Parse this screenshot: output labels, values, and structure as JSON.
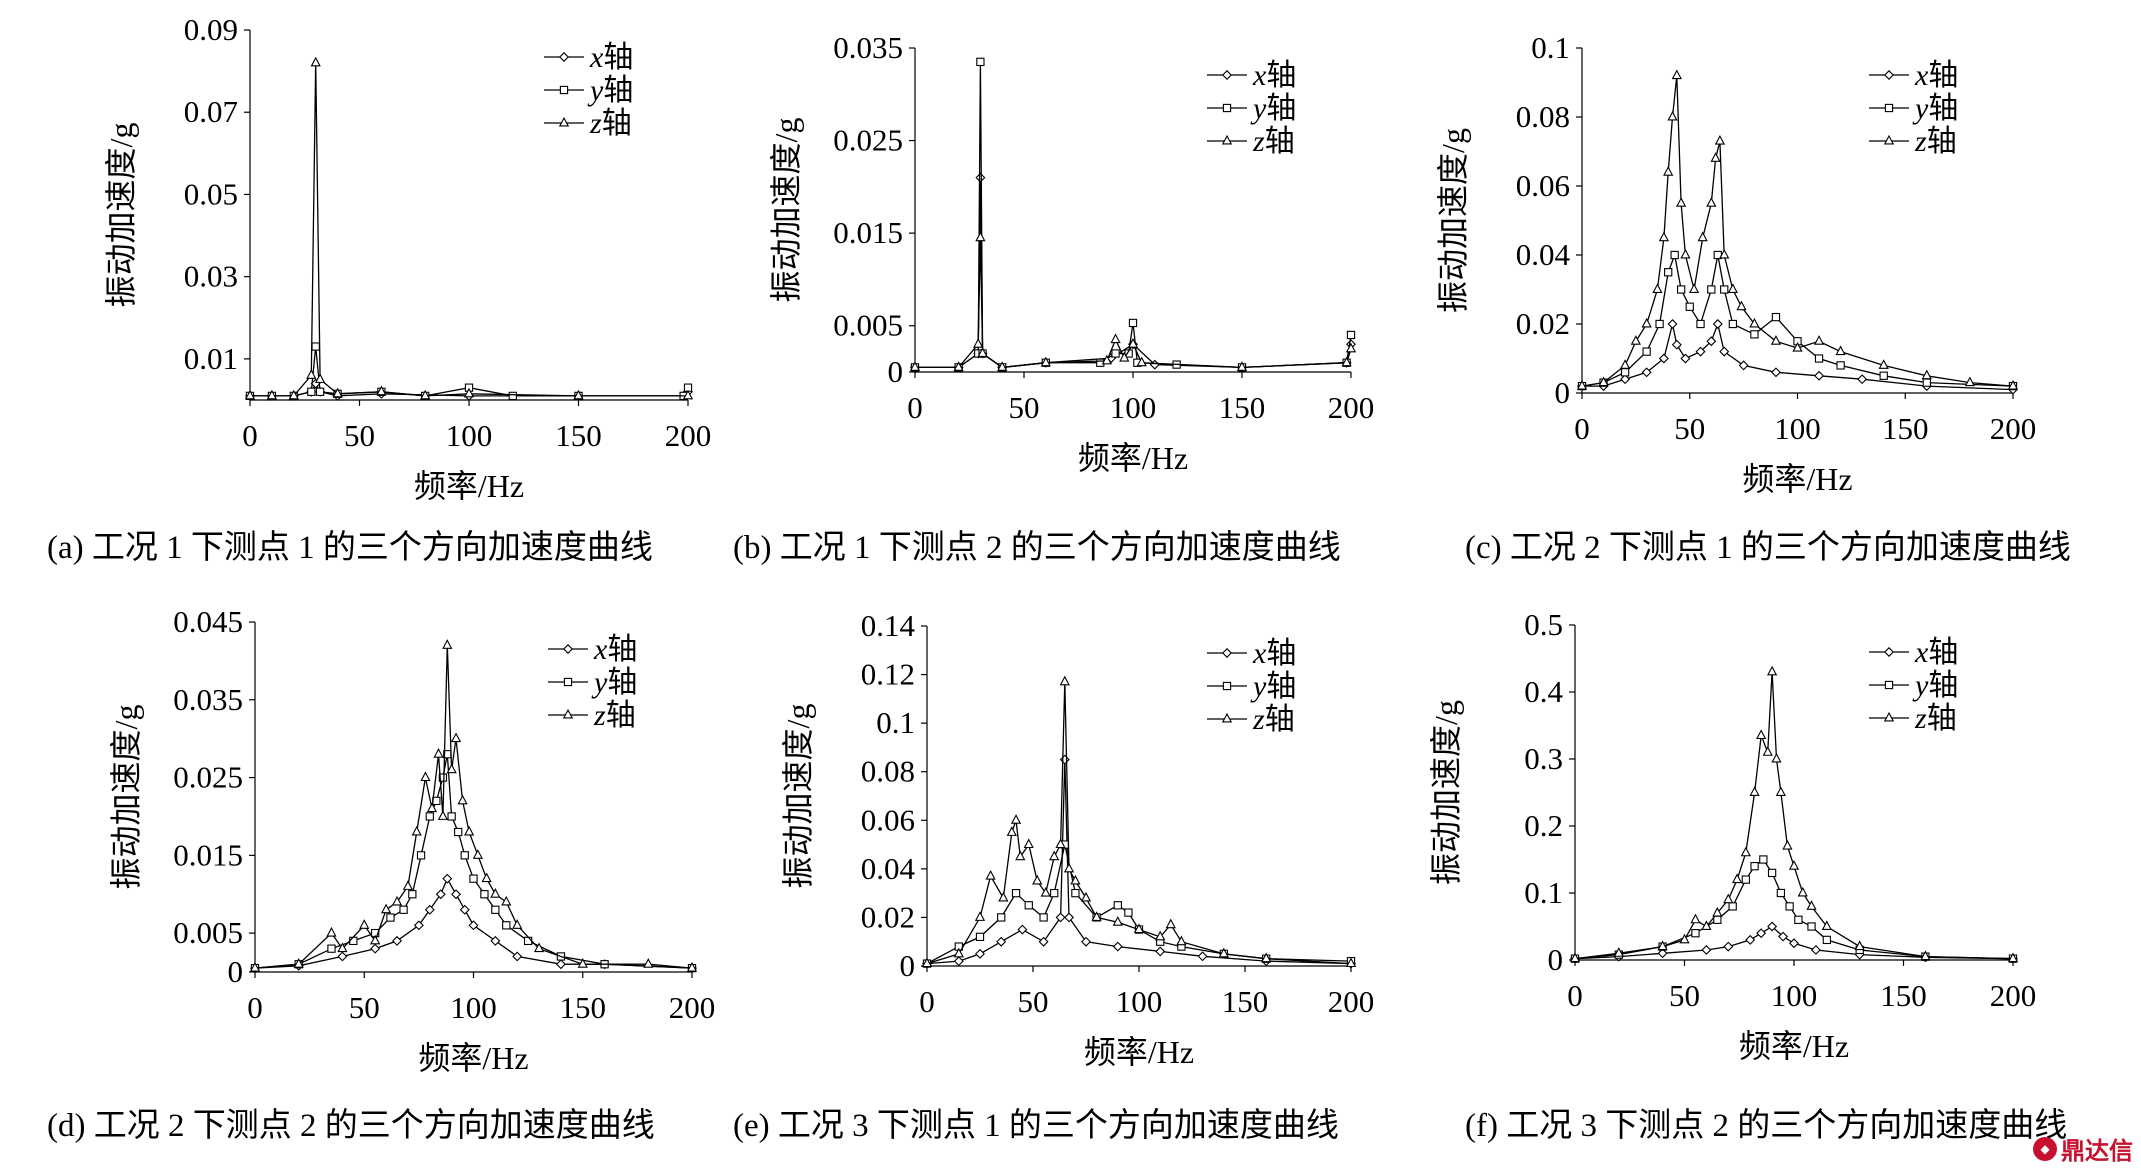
{
  "watermark": {
    "text": "鼎达信",
    "color": "#c8102e"
  },
  "style": {
    "line_color": "#000000",
    "marker_fill": "#ffffff"
  },
  "chart_data": [
    {
      "id": "a",
      "type": "line",
      "caption": "(a) 工况 1 下测点 1 的三个方向加速度曲线",
      "xlabel": "频率/Hz",
      "ylabel": "振动加速度/g",
      "xlim": [
        0,
        200
      ],
      "ylim": [
        0,
        0.09
      ],
      "xticks": [
        0,
        50,
        100,
        150,
        200
      ],
      "yticks": [
        0.01,
        0.03,
        0.05,
        0.07,
        0.09
      ],
      "ytick_labels": [
        "0.01",
        "0.03",
        "0.05",
        "0.07",
        "0.09"
      ],
      "legend_position": "top-right",
      "series": [
        {
          "name": "x轴",
          "prefix": "x",
          "suffix": "轴",
          "marker": "diamond",
          "x": [
            0,
            10,
            20,
            28,
            30,
            32,
            40,
            60,
            100,
            150,
            198,
            200
          ],
          "y": [
            0.001,
            0.001,
            0.001,
            0.002,
            0.004,
            0.002,
            0.001,
            0.0015,
            0.001,
            0.001,
            0.001,
            0.002
          ]
        },
        {
          "name": "y轴",
          "prefix": "y",
          "suffix": "轴",
          "marker": "square",
          "x": [
            0,
            10,
            20,
            28,
            30,
            32,
            40,
            60,
            80,
            100,
            120,
            150,
            198,
            200
          ],
          "y": [
            0.001,
            0.001,
            0.001,
            0.002,
            0.013,
            0.002,
            0.0015,
            0.002,
            0.001,
            0.003,
            0.001,
            0.001,
            0.001,
            0.003
          ]
        },
        {
          "name": "z轴",
          "prefix": "z",
          "suffix": "轴",
          "marker": "triangle",
          "x": [
            0,
            10,
            20,
            28,
            30,
            32,
            40,
            60,
            80,
            100,
            150,
            200
          ],
          "y": [
            0.001,
            0.001,
            0.001,
            0.006,
            0.082,
            0.005,
            0.0015,
            0.002,
            0.001,
            0.0015,
            0.001,
            0.001
          ]
        }
      ]
    },
    {
      "id": "b",
      "type": "line",
      "caption": "(b) 工况 1 下测点 2 的三个方向加速度曲线",
      "xlabel": "频率/Hz",
      "ylabel": "振动加速度/g",
      "xlim": [
        0,
        200
      ],
      "ylim": [
        0,
        0.035
      ],
      "xticks": [
        0,
        50,
        100,
        150,
        200
      ],
      "yticks": [
        0,
        0.005,
        0.015,
        0.025,
        0.035
      ],
      "ytick_labels": [
        "0",
        "0.005",
        "0.015",
        "0.025",
        "0.035"
      ],
      "legend_position": "top-right",
      "series": [
        {
          "name": "x轴",
          "prefix": "x",
          "suffix": "轴",
          "marker": "diamond",
          "x": [
            0,
            20,
            29,
            30,
            31,
            40,
            60,
            90,
            100,
            110,
            150,
            198,
            200
          ],
          "y": [
            0.0005,
            0.0005,
            0.002,
            0.021,
            0.002,
            0.0005,
            0.001,
            0.0015,
            0.003,
            0.0008,
            0.0005,
            0.001,
            0.003
          ]
        },
        {
          "name": "y轴",
          "prefix": "y",
          "suffix": "轴",
          "marker": "square",
          "x": [
            0,
            20,
            29,
            30,
            31,
            40,
            60,
            85,
            92,
            98,
            100,
            102,
            120,
            150,
            198,
            200
          ],
          "y": [
            0.0005,
            0.0005,
            0.002,
            0.0335,
            0.002,
            0.0005,
            0.001,
            0.001,
            0.002,
            0.002,
            0.0053,
            0.001,
            0.0008,
            0.0005,
            0.001,
            0.004
          ]
        },
        {
          "name": "z轴",
          "prefix": "z",
          "suffix": "轴",
          "marker": "triangle",
          "x": [
            0,
            20,
            29,
            30,
            31,
            40,
            60,
            88,
            92,
            96,
            100,
            104,
            150,
            198,
            200
          ],
          "y": [
            0.0005,
            0.0005,
            0.003,
            0.0145,
            0.002,
            0.0005,
            0.001,
            0.0012,
            0.0035,
            0.0015,
            0.003,
            0.001,
            0.0005,
            0.001,
            0.0025
          ]
        }
      ]
    },
    {
      "id": "c",
      "type": "line",
      "caption": "(c) 工况 2 下测点 1 的三个方向加速度曲线",
      "xlabel": "频率/Hz",
      "ylabel": "振动加速度/g",
      "xlim": [
        0,
        200
      ],
      "ylim": [
        0,
        0.1
      ],
      "xticks": [
        0,
        50,
        100,
        150,
        200
      ],
      "yticks": [
        0,
        0.02,
        0.04,
        0.06,
        0.08,
        0.1
      ],
      "ytick_labels": [
        "0",
        "0.02",
        "0.04",
        "0.06",
        "0.08",
        "0.1"
      ],
      "legend_position": "top-right",
      "series": [
        {
          "name": "x轴",
          "prefix": "x",
          "suffix": "轴",
          "marker": "diamond",
          "x": [
            0,
            10,
            20,
            30,
            38,
            42,
            44,
            48,
            55,
            60,
            63,
            66,
            75,
            90,
            110,
            130,
            160,
            200
          ],
          "y": [
            0.002,
            0.002,
            0.004,
            0.006,
            0.01,
            0.02,
            0.014,
            0.01,
            0.012,
            0.015,
            0.02,
            0.012,
            0.008,
            0.006,
            0.005,
            0.004,
            0.002,
            0.001
          ]
        },
        {
          "name": "y轴",
          "prefix": "y",
          "suffix": "轴",
          "marker": "square",
          "x": [
            0,
            10,
            20,
            30,
            36,
            40,
            43,
            46,
            50,
            55,
            60,
            63,
            66,
            70,
            80,
            90,
            100,
            110,
            120,
            140,
            160,
            200
          ],
          "y": [
            0.002,
            0.003,
            0.006,
            0.012,
            0.02,
            0.035,
            0.04,
            0.03,
            0.025,
            0.02,
            0.03,
            0.04,
            0.03,
            0.02,
            0.017,
            0.022,
            0.015,
            0.01,
            0.008,
            0.005,
            0.003,
            0.002
          ]
        },
        {
          "name": "z轴",
          "prefix": "z",
          "suffix": "轴",
          "marker": "triangle",
          "x": [
            0,
            10,
            20,
            25,
            30,
            35,
            38,
            40,
            42,
            44,
            46,
            48,
            52,
            56,
            60,
            62,
            64,
            66,
            70,
            74,
            80,
            90,
            100,
            110,
            120,
            140,
            160,
            180,
            200
          ],
          "y": [
            0.002,
            0.003,
            0.008,
            0.015,
            0.02,
            0.03,
            0.045,
            0.064,
            0.08,
            0.092,
            0.055,
            0.04,
            0.03,
            0.045,
            0.055,
            0.068,
            0.073,
            0.04,
            0.03,
            0.025,
            0.02,
            0.015,
            0.013,
            0.015,
            0.012,
            0.008,
            0.005,
            0.003,
            0.002
          ]
        }
      ]
    },
    {
      "id": "d",
      "type": "line",
      "caption": "(d) 工况 2 下测点 2 的三个方向加速度曲线",
      "xlabel": "频率/Hz",
      "ylabel": "振动加速度/g",
      "xlim": [
        0,
        200
      ],
      "ylim": [
        0,
        0.045
      ],
      "xticks": [
        0,
        50,
        100,
        150,
        200
      ],
      "yticks": [
        0,
        0.005,
        0.015,
        0.025,
        0.035,
        0.045
      ],
      "ytick_labels": [
        "0",
        "0.005",
        "0.015",
        "0.025",
        "0.035",
        "0.045"
      ],
      "legend_position": "top-right",
      "series": [
        {
          "name": "x轴",
          "prefix": "x",
          "suffix": "轴",
          "marker": "diamond",
          "x": [
            0,
            20,
            40,
            55,
            65,
            75,
            80,
            85,
            88,
            92,
            96,
            100,
            110,
            120,
            140,
            160,
            200
          ],
          "y": [
            0.0005,
            0.0008,
            0.002,
            0.003,
            0.004,
            0.006,
            0.008,
            0.01,
            0.012,
            0.01,
            0.008,
            0.006,
            0.004,
            0.002,
            0.001,
            0.001,
            0.0005
          ]
        },
        {
          "name": "y轴",
          "prefix": "y",
          "suffix": "轴",
          "marker": "square",
          "x": [
            0,
            20,
            35,
            45,
            55,
            62,
            68,
            72,
            76,
            80,
            83,
            86,
            88,
            90,
            93,
            96,
            100,
            105,
            110,
            115,
            125,
            140,
            160,
            200
          ],
          "y": [
            0.0005,
            0.001,
            0.003,
            0.004,
            0.005,
            0.007,
            0.008,
            0.01,
            0.015,
            0.02,
            0.022,
            0.025,
            0.028,
            0.02,
            0.018,
            0.015,
            0.012,
            0.01,
            0.008,
            0.006,
            0.004,
            0.002,
            0.001,
            0.0005
          ]
        },
        {
          "name": "z轴",
          "prefix": "z",
          "suffix": "轴",
          "marker": "triangle",
          "x": [
            0,
            20,
            35,
            40,
            50,
            55,
            60,
            65,
            70,
            74,
            78,
            81,
            84,
            86,
            88,
            90,
            92,
            95,
            98,
            102,
            106,
            110,
            115,
            120,
            130,
            150,
            180,
            200
          ],
          "y": [
            0.0005,
            0.001,
            0.005,
            0.003,
            0.006,
            0.004,
            0.008,
            0.009,
            0.011,
            0.018,
            0.025,
            0.021,
            0.028,
            0.02,
            0.042,
            0.026,
            0.03,
            0.022,
            0.018,
            0.015,
            0.012,
            0.01,
            0.009,
            0.006,
            0.003,
            0.001,
            0.001,
            0.0005
          ]
        }
      ]
    },
    {
      "id": "e",
      "type": "line",
      "caption": "(e) 工况 3 下测点 1 的三个方向加速度曲线",
      "xlabel": "频率/Hz",
      "ylabel": "振动加速度/g",
      "xlim": [
        0,
        200
      ],
      "ylim": [
        0,
        0.14
      ],
      "xticks": [
        0,
        50,
        100,
        150,
        200
      ],
      "yticks": [
        0,
        0.02,
        0.04,
        0.06,
        0.08,
        0.1,
        0.12,
        0.14
      ],
      "ytick_labels": [
        "0",
        "0.02",
        "0.04",
        "0.06",
        "0.08",
        "0.1",
        "0.12",
        "0.14"
      ],
      "legend_position": "top-right",
      "series": [
        {
          "name": "x轴",
          "prefix": "x",
          "suffix": "轴",
          "marker": "diamond",
          "x": [
            0,
            15,
            25,
            35,
            45,
            55,
            63,
            65,
            67,
            75,
            90,
            110,
            130,
            160,
            200
          ],
          "y": [
            0.001,
            0.002,
            0.005,
            0.01,
            0.015,
            0.01,
            0.02,
            0.085,
            0.02,
            0.01,
            0.008,
            0.006,
            0.004,
            0.002,
            0.001
          ]
        },
        {
          "name": "y轴",
          "prefix": "y",
          "suffix": "轴",
          "marker": "square",
          "x": [
            0,
            15,
            25,
            35,
            42,
            48,
            55,
            60,
            65,
            70,
            80,
            90,
            95,
            100,
            110,
            120,
            140,
            160,
            200
          ],
          "y": [
            0.001,
            0.008,
            0.012,
            0.02,
            0.03,
            0.025,
            0.02,
            0.03,
            0.05,
            0.03,
            0.02,
            0.025,
            0.022,
            0.015,
            0.01,
            0.008,
            0.005,
            0.003,
            0.002
          ]
        },
        {
          "name": "z轴",
          "prefix": "z",
          "suffix": "轴",
          "marker": "triangle",
          "x": [
            0,
            15,
            25,
            30,
            36,
            40,
            42,
            44,
            48,
            52,
            56,
            60,
            63,
            65,
            67,
            70,
            75,
            80,
            90,
            100,
            110,
            115,
            120,
            140,
            160,
            200
          ],
          "y": [
            0.001,
            0.005,
            0.02,
            0.037,
            0.028,
            0.055,
            0.06,
            0.045,
            0.05,
            0.035,
            0.03,
            0.045,
            0.05,
            0.117,
            0.04,
            0.035,
            0.028,
            0.02,
            0.018,
            0.015,
            0.012,
            0.017,
            0.01,
            0.005,
            0.003,
            0.001
          ]
        }
      ]
    },
    {
      "id": "f",
      "type": "line",
      "caption": "(f) 工况 3 下测点 2 的三个方向加速度曲线",
      "xlabel": "频率/Hz",
      "ylabel": "振动加速度/g",
      "xlim": [
        0,
        200
      ],
      "ylim": [
        0,
        0.5
      ],
      "xticks": [
        0,
        50,
        100,
        150,
        200
      ],
      "yticks": [
        0,
        0.1,
        0.2,
        0.3,
        0.4,
        0.5
      ],
      "ytick_labels": [
        "0",
        "0.1",
        "0.2",
        "0.3",
        "0.4",
        "0.5"
      ],
      "legend_position": "top-right",
      "series": [
        {
          "name": "x轴",
          "prefix": "x",
          "suffix": "轴",
          "marker": "diamond",
          "x": [
            0,
            20,
            40,
            60,
            70,
            80,
            85,
            90,
            95,
            100,
            110,
            130,
            160,
            200
          ],
          "y": [
            0.002,
            0.005,
            0.01,
            0.015,
            0.02,
            0.03,
            0.04,
            0.05,
            0.035,
            0.025,
            0.015,
            0.008,
            0.004,
            0.002
          ]
        },
        {
          "name": "y轴",
          "prefix": "y",
          "suffix": "轴",
          "marker": "square",
          "x": [
            0,
            20,
            40,
            55,
            65,
            72,
            78,
            82,
            86,
            90,
            94,
            98,
            102,
            108,
            115,
            130,
            160,
            200
          ],
          "y": [
            0.002,
            0.008,
            0.02,
            0.04,
            0.06,
            0.08,
            0.12,
            0.14,
            0.15,
            0.13,
            0.1,
            0.08,
            0.06,
            0.05,
            0.03,
            0.015,
            0.005,
            0.002
          ]
        },
        {
          "name": "z轴",
          "prefix": "z",
          "suffix": "轴",
          "marker": "triangle",
          "x": [
            0,
            20,
            40,
            50,
            55,
            60,
            65,
            70,
            74,
            78,
            82,
            85,
            88,
            90,
            92,
            94,
            97,
            100,
            104,
            108,
            115,
            130,
            160,
            200
          ],
          "y": [
            0.002,
            0.01,
            0.02,
            0.03,
            0.06,
            0.05,
            0.07,
            0.09,
            0.12,
            0.16,
            0.25,
            0.335,
            0.31,
            0.43,
            0.3,
            0.25,
            0.17,
            0.14,
            0.1,
            0.08,
            0.05,
            0.02,
            0.005,
            0.002
          ]
        }
      ]
    }
  ]
}
